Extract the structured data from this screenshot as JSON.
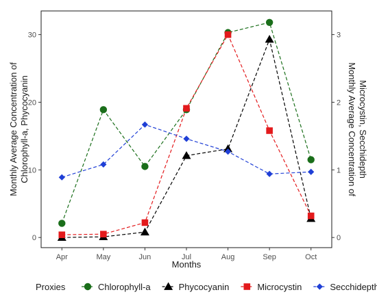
{
  "chart_data": {
    "type": "line",
    "categories": [
      "Apr",
      "May",
      "Jun",
      "Jul",
      "Aug",
      "Sep",
      "Oct"
    ],
    "xlabel": "Months",
    "ylabel_left": [
      "Monthly Average Concentration of",
      "Chlorophyll-a, Phycocyanin"
    ],
    "ylabel_right": [
      "Monthly Average Concentration of",
      "Microcystin, Secchidepth"
    ],
    "ylim_left": [
      -1.5,
      33.5
    ],
    "ylim_right": [
      -0.15,
      3.35
    ],
    "yticks_left": [
      0,
      10,
      20,
      30
    ],
    "yticks_right": [
      0,
      1,
      2,
      3
    ],
    "grid": false,
    "legend": {
      "title": "Proxies",
      "position": "bottom"
    },
    "series": [
      {
        "name": "Chlorophyll-a",
        "axis": "left",
        "marker": "circle",
        "color": "#1a6e1a",
        "values": [
          2.1,
          18.9,
          10.5,
          18.9,
          30.3,
          31.8,
          11.5
        ]
      },
      {
        "name": "Phycocyanin",
        "axis": "left",
        "marker": "triangle",
        "color": "#000000",
        "values": [
          0.0,
          0.1,
          0.8,
          12.1,
          13.1,
          29.3,
          2.8
        ]
      },
      {
        "name": "Microcystin",
        "axis": "right",
        "marker": "square",
        "color": "#e31a1c",
        "values": [
          0.04,
          0.05,
          0.22,
          1.91,
          3.0,
          1.58,
          0.32
        ]
      },
      {
        "name": "Secchidepth",
        "axis": "right",
        "marker": "diamond",
        "color": "#1f3fd6",
        "values": [
          0.89,
          1.08,
          1.67,
          1.46,
          1.27,
          0.94,
          0.97
        ]
      }
    ]
  }
}
